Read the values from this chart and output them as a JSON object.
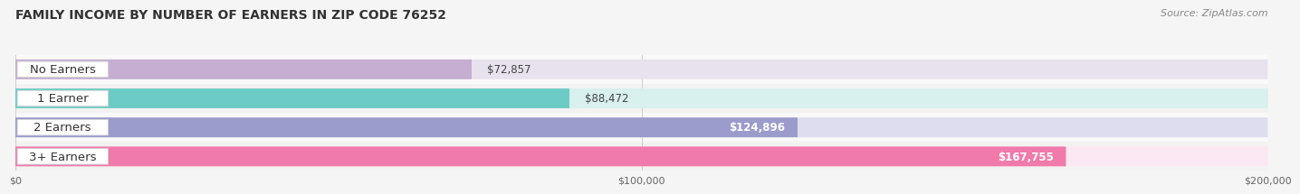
{
  "title": "FAMILY INCOME BY NUMBER OF EARNERS IN ZIP CODE 76252",
  "source": "Source: ZipAtlas.com",
  "categories": [
    "No Earners",
    "1 Earner",
    "2 Earners",
    "3+ Earners"
  ],
  "values": [
    72857,
    88472,
    124896,
    167755
  ],
  "value_labels": [
    "$72,857",
    "$88,472",
    "$124,896",
    "$167,755"
  ],
  "bar_colors": [
    "#c5aed1",
    "#6dcbc5",
    "#9b9bcc",
    "#f07aaa"
  ],
  "bar_bg_colors": [
    "#e8e2ee",
    "#d8f0ee",
    "#deddf0",
    "#fce8f2"
  ],
  "row_bg_colors": [
    "#f9f9f9",
    "#f2f2f2"
  ],
  "background_color": "#f5f5f5",
  "xlim": [
    0,
    200000
  ],
  "xtick_labels": [
    "$0",
    "$100,000",
    "$200,000"
  ],
  "xtick_values": [
    0,
    100000,
    200000
  ],
  "title_fontsize": 10,
  "source_fontsize": 8,
  "label_fontsize": 9.5,
  "value_fontsize": 8.5,
  "bar_height": 0.68,
  "value_label_inside_threshold": 110000
}
